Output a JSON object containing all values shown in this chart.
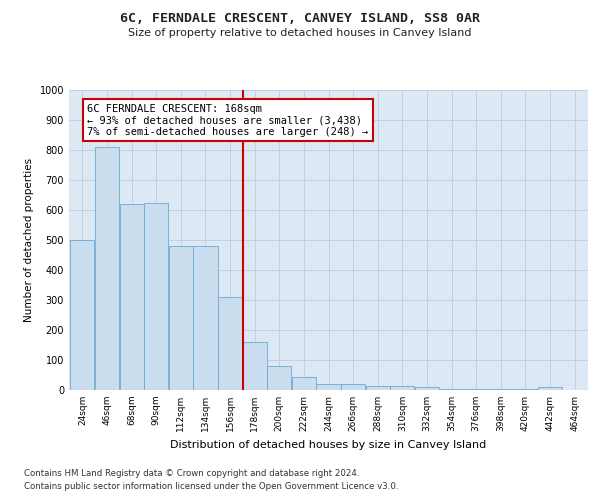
{
  "title": "6C, FERNDALE CRESCENT, CANVEY ISLAND, SS8 0AR",
  "subtitle": "Size of property relative to detached houses in Canvey Island",
  "xlabel": "Distribution of detached houses by size in Canvey Island",
  "ylabel": "Number of detached properties",
  "footnote1": "Contains HM Land Registry data © Crown copyright and database right 2024.",
  "footnote2": "Contains public sector information licensed under the Open Government Licence v3.0.",
  "annotation_title": "6C FERNDALE CRESCENT: 168sqm",
  "annotation_line1": "← 93% of detached houses are smaller (3,438)",
  "annotation_line2": "7% of semi-detached houses are larger (248) →",
  "property_size": 168,
  "bar_color": "#c9ddef",
  "bar_edge_color": "#6aaad4",
  "vline_color": "#cc0000",
  "annotation_box_color": "#cc0000",
  "bg_color": "#ffffff",
  "axes_bg_color": "#dce9f5",
  "grid_color": "#b8cfe0",
  "bin_centers": [
    24,
    46,
    68,
    90,
    112,
    134,
    156,
    178,
    200,
    222,
    244,
    266,
    288,
    310,
    332,
    354,
    376,
    398,
    420,
    442,
    464
  ],
  "bin_labels": [
    "24sqm",
    "46sqm",
    "68sqm",
    "90sqm",
    "112sqm",
    "134sqm",
    "156sqm",
    "178sqm",
    "200sqm",
    "222sqm",
    "244sqm",
    "266sqm",
    "288sqm",
    "310sqm",
    "332sqm",
    "354sqm",
    "376sqm",
    "398sqm",
    "420sqm",
    "442sqm",
    "464sqm"
  ],
  "counts": [
    500,
    810,
    620,
    625,
    480,
    480,
    310,
    160,
    80,
    45,
    20,
    20,
    15,
    15,
    10,
    5,
    5,
    5,
    5,
    10,
    0
  ],
  "ylim": [
    0,
    1000
  ],
  "yticks": [
    0,
    100,
    200,
    300,
    400,
    500,
    600,
    700,
    800,
    900,
    1000
  ]
}
